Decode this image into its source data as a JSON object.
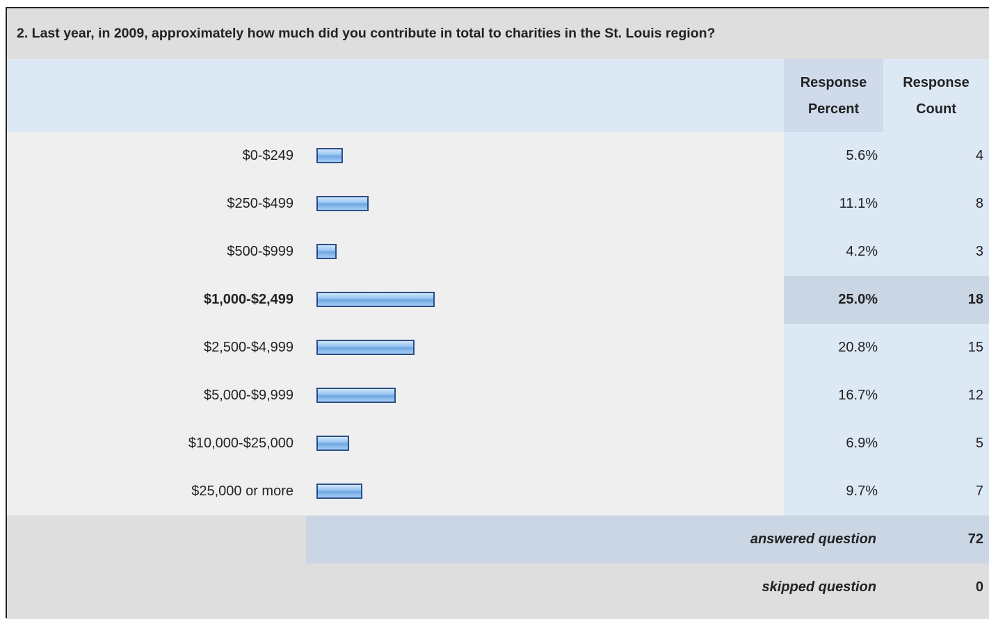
{
  "question": "2. Last year, in 2009, approximately how much did you contribute in total to charities in the St. Louis region?",
  "headers": {
    "percent": "Response Percent",
    "count": "Response Count"
  },
  "rows": [
    {
      "label": "$0-$249",
      "percent": 5.6,
      "percent_label": "5.6%",
      "count": 4
    },
    {
      "label": "$250-$499",
      "percent": 11.1,
      "percent_label": "11.1%",
      "count": 8
    },
    {
      "label": "$500-$999",
      "percent": 4.2,
      "percent_label": "4.2%",
      "count": 3
    },
    {
      "label": "$1,000-$2,499",
      "percent": 25.0,
      "percent_label": "25.0%",
      "count": 18
    },
    {
      "label": "$2,500-$4,999",
      "percent": 20.8,
      "percent_label": "20.8%",
      "count": 15
    },
    {
      "label": "$5,000-$9,999",
      "percent": 16.7,
      "percent_label": "16.7%",
      "count": 12
    },
    {
      "label": "$10,000-$25,000",
      "percent": 6.9,
      "percent_label": "6.9%",
      "count": 5
    },
    {
      "label": "$25,000 or more",
      "percent": 9.7,
      "percent_label": "9.7%",
      "count": 7
    }
  ],
  "footer": {
    "answered_label": "answered question",
    "answered_count": 72,
    "skipped_label": "skipped question",
    "skipped_count": 0
  }
}
